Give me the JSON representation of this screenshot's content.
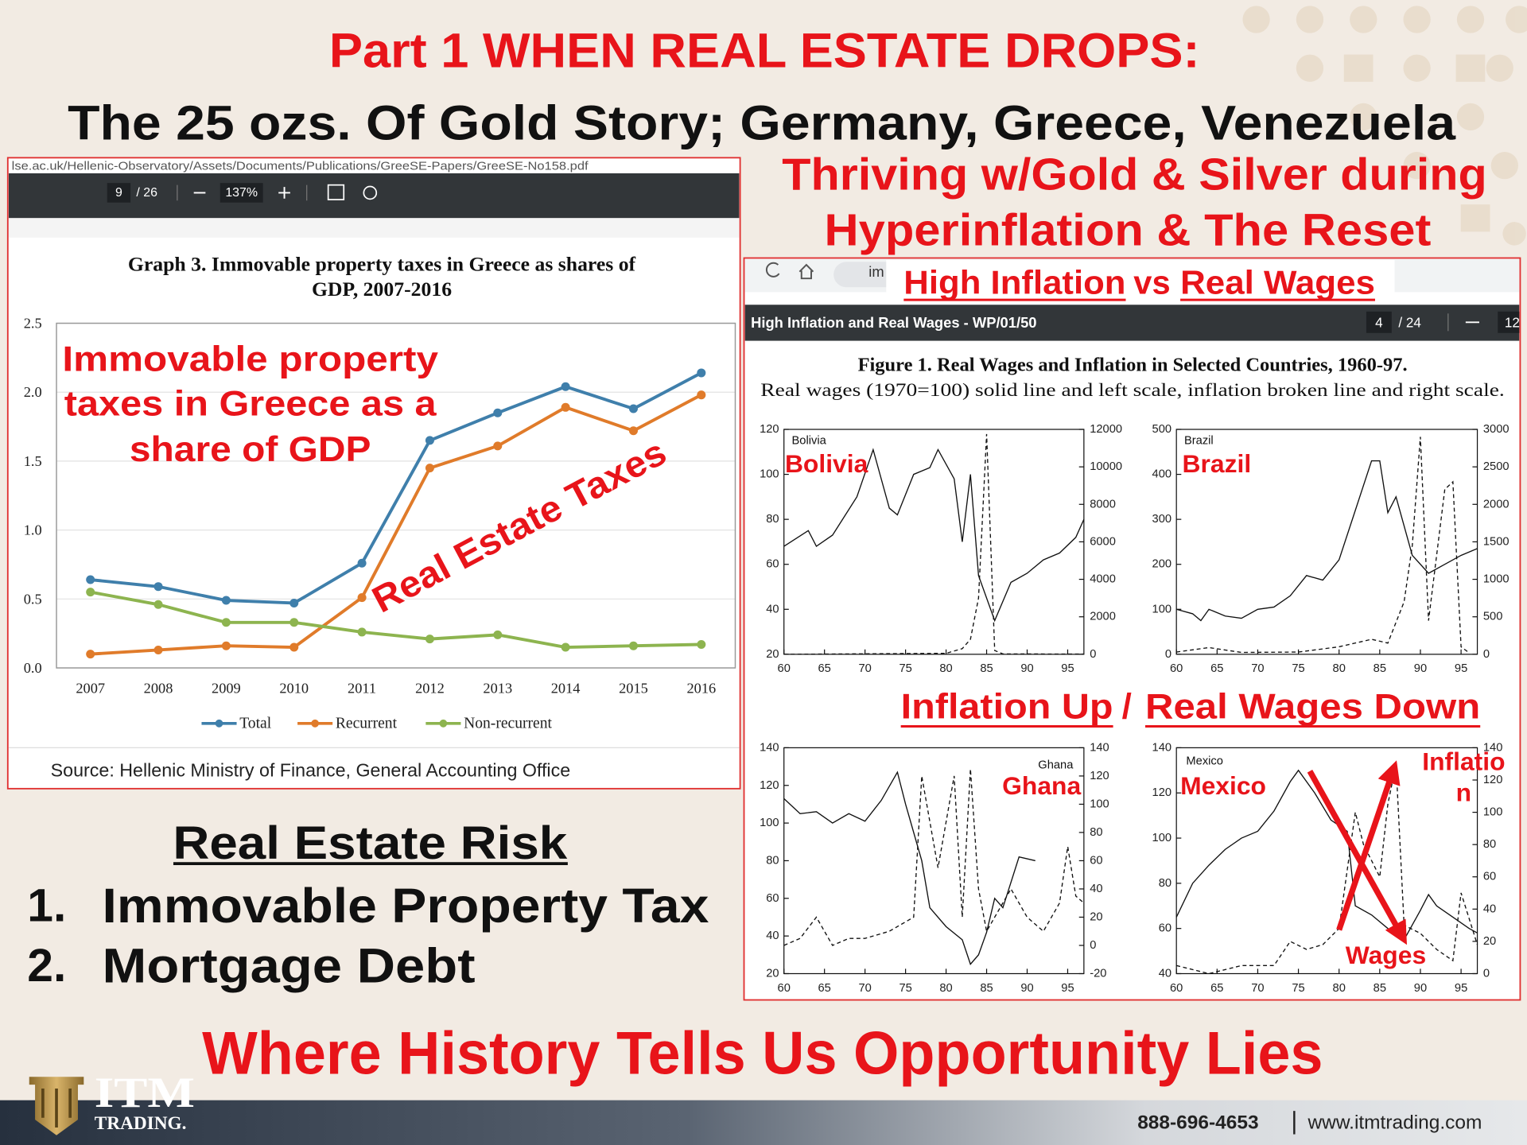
{
  "header": {
    "title": "Part 1 WHEN REAL ESTATE DROPS:",
    "subtitle": "The 25 ozs. Of Gold Story; Germany, Greece, Venezuela",
    "tagline": [
      "Thriving w/Gold & Silver during",
      "Hyperinflation & The Reset"
    ]
  },
  "left_viewer": {
    "url": "lse.ac.uk/Hellenic-Observatory/Assets/Documents/Publications/GreeSE-Papers/GreeSE-No158.pdf",
    "page": "9",
    "pages": "/ 26",
    "zoom": "137%",
    "source": "Source: Hellenic Ministry of Finance, General Accounting Office"
  },
  "right_viewer": {
    "address": "im",
    "headline": [
      "High Inflation",
      "vs",
      "Real Wages"
    ],
    "doc_title": "High Inflation and Real Wages - WP/01/50",
    "page": "4",
    "pages": "/ 24",
    "zoom": "12",
    "figure_title": "Figure 1. Real Wages and Inflation in Selected Countries, 1960-97.",
    "figure_subtitle": "Real wages (1970=100) solid line and left scale, inflation broken line and right scale.",
    "banner": [
      "Inflation Up",
      "/",
      "Real Wages Down"
    ]
  },
  "risk": {
    "title": "Real Estate Risk",
    "items": [
      {
        "number": "1.",
        "text": "Immovable Property Tax"
      },
      {
        "number": "2.",
        "text": "Mortgage Debt"
      }
    ]
  },
  "closing": "Where History Tells Us Opportunity Lies",
  "footer": {
    "logo": [
      "ITM",
      "TRADING."
    ],
    "phone": "888-696-4653",
    "website": "www.itmtrading.com"
  },
  "chart_data": [
    {
      "type": "line",
      "title": [
        "Graph 3. Immovable property taxes in Greece  as shares of",
        "GDP, 2007-2016"
      ],
      "categories": [
        "2007",
        "2008",
        "2009",
        "2010",
        "2011",
        "2012",
        "2013",
        "2014",
        "2015",
        "2016"
      ],
      "series": [
        {
          "name": "Total",
          "color": "#3f7fab",
          "values": [
            0.64,
            0.59,
            0.49,
            0.47,
            0.76,
            1.65,
            1.85,
            2.04,
            1.88,
            2.14
          ]
        },
        {
          "name": "Recurrent",
          "color": "#e07b2a",
          "values": [
            0.1,
            0.13,
            0.16,
            0.15,
            0.51,
            1.45,
            1.61,
            1.89,
            1.72,
            1.98
          ]
        },
        {
          "name": "Non-recurrent",
          "color": "#8db44f",
          "values": [
            0.55,
            0.46,
            0.33,
            0.33,
            0.26,
            0.21,
            0.24,
            0.15,
            0.16,
            0.17
          ]
        }
      ],
      "ylim": [
        0,
        2.5
      ],
      "yticks": [
        {
          "value": 0,
          "label": "0.0"
        },
        0.5,
        {
          "value": 1,
          "label": "1.0"
        },
        1.5,
        {
          "value": 2,
          "label": "2.0"
        },
        2.5
      ],
      "grid": true,
      "markers": true,
      "legend": "bottom",
      "annotations": [
        "Immovable property",
        "taxes in Greece as a",
        "share of GDP",
        "Real Estate Taxes"
      ]
    },
    {
      "type": "line",
      "label": "Bolivia",
      "callout": "Bolivia",
      "xlim": [
        60,
        97
      ],
      "xticks": [
        60,
        65,
        70,
        75,
        80,
        85,
        90,
        95
      ],
      "ylim": [
        20,
        120
      ],
      "yticks": [
        20,
        40,
        60,
        80,
        100,
        120
      ],
      "y2lim": [
        0,
        12000
      ],
      "y2ticks": [
        0,
        2000,
        4000,
        6000,
        8000,
        10000,
        12000
      ],
      "series": [
        {
          "color": "#111111",
          "style": "solid",
          "x": [
            60,
            63,
            64,
            66,
            69,
            71,
            73,
            74,
            76,
            78,
            79,
            81,
            82,
            83,
            84,
            86,
            88,
            90,
            92,
            94,
            96,
            97
          ],
          "values": [
            68,
            75,
            68,
            73,
            90,
            111,
            85,
            82,
            100,
            103,
            111,
            98,
            70,
            100,
            55,
            35,
            52,
            56,
            62,
            65,
            72,
            80
          ]
        },
        {
          "color": "#111111",
          "style": "dashed",
          "axis": "y2",
          "x": [
            60,
            80,
            82,
            83,
            84,
            85,
            86,
            87,
            97
          ],
          "values": [
            0,
            50,
            300,
            800,
            3000,
            11750,
            200,
            20,
            10
          ]
        }
      ]
    },
    {
      "type": "line",
      "label": "Brazil",
      "callout": "Brazil",
      "xlim": [
        60,
        97
      ],
      "xticks": [
        60,
        65,
        70,
        75,
        80,
        85,
        90,
        95
      ],
      "ylim": [
        0,
        500
      ],
      "yticks": [
        0,
        100,
        200,
        300,
        400,
        500
      ],
      "y2lim": [
        0,
        3000
      ],
      "y2ticks": [
        0,
        500,
        1000,
        1500,
        2000,
        2500,
        3000
      ],
      "series": [
        {
          "color": "#111111",
          "style": "solid",
          "x": [
            60,
            62,
            63,
            64,
            66,
            68,
            70,
            72,
            74,
            76,
            78,
            80,
            82,
            84,
            85,
            86,
            87,
            89,
            91,
            93,
            95,
            97
          ],
          "values": [
            100,
            90,
            75,
            100,
            85,
            80,
            100,
            105,
            130,
            175,
            165,
            210,
            320,
            430,
            430,
            315,
            350,
            220,
            180,
            200,
            220,
            235
          ]
        },
        {
          "color": "#111111",
          "style": "dashed",
          "axis": "y2",
          "x": [
            60,
            64,
            68,
            75,
            80,
            84,
            86,
            88,
            89,
            90,
            91,
            93,
            94,
            95,
            96
          ],
          "values": [
            30,
            90,
            25,
            30,
            100,
            200,
            150,
            700,
            1450,
            2900,
            450,
            2200,
            2300,
            100,
            20
          ]
        }
      ]
    },
    {
      "type": "line",
      "label": "Ghana",
      "callout": "Ghana",
      "xlim": [
        60,
        97
      ],
      "xticks": [
        60,
        65,
        70,
        75,
        80,
        85,
        90,
        95
      ],
      "ylim": [
        20,
        140
      ],
      "yticks": [
        20,
        40,
        60,
        80,
        100,
        120,
        140
      ],
      "y2lim": [
        -20,
        140
      ],
      "y2ticks": [
        -20,
        0,
        20,
        40,
        60,
        80,
        100,
        120,
        140
      ],
      "series": [
        {
          "color": "#111111",
          "style": "solid",
          "x": [
            60,
            62,
            64,
            66,
            68,
            70,
            72,
            74,
            75,
            77,
            78,
            80,
            82,
            83,
            84,
            85,
            86,
            87,
            89,
            91
          ],
          "values": [
            113,
            105,
            106,
            100,
            105,
            101,
            112,
            127,
            110,
            80,
            55,
            45,
            38,
            25,
            30,
            42,
            60,
            55,
            82,
            80
          ]
        },
        {
          "color": "#111111",
          "style": "dashed",
          "axis": "y2",
          "x": [
            60,
            62,
            64,
            66,
            68,
            70,
            73,
            76,
            77,
            79,
            81,
            82,
            83,
            84,
            85,
            86,
            88,
            90,
            92,
            94,
            95,
            96,
            97
          ],
          "values": [
            0,
            5,
            20,
            0,
            5,
            5,
            10,
            20,
            120,
            55,
            120,
            20,
            125,
            40,
            10,
            20,
            40,
            20,
            10,
            30,
            70,
            35,
            30
          ]
        }
      ]
    },
    {
      "type": "line",
      "label": "Mexico",
      "callout": "Mexico",
      "xlim": [
        60,
        97
      ],
      "xticks": [
        60,
        65,
        70,
        75,
        80,
        85,
        90,
        95
      ],
      "ylim": [
        40,
        140
      ],
      "yticks": [
        40,
        60,
        80,
        100,
        120,
        140
      ],
      "y2lim": [
        0,
        140
      ],
      "y2ticks": [
        0,
        20,
        40,
        60,
        80,
        100,
        120,
        140
      ],
      "annotations": [
        "Inflatio",
        "n",
        "Wages"
      ],
      "series": [
        {
          "color": "#111111",
          "style": "solid",
          "x": [
            60,
            62,
            64,
            66,
            68,
            70,
            72,
            74,
            75,
            77,
            79,
            81,
            82,
            84,
            86,
            88,
            90,
            91,
            92,
            94,
            96,
            97
          ],
          "values": [
            65,
            80,
            88,
            95,
            100,
            103,
            112,
            125,
            130,
            120,
            108,
            103,
            70,
            66,
            60,
            55,
            68,
            75,
            70,
            65,
            60,
            58
          ]
        },
        {
          "color": "#111111",
          "style": "dashed",
          "axis": "y2",
          "x": [
            60,
            64,
            68,
            72,
            74,
            76,
            78,
            80,
            82,
            83,
            85,
            86,
            87,
            88,
            90,
            92,
            94,
            95,
            97
          ],
          "values": [
            5,
            0,
            5,
            5,
            20,
            15,
            18,
            28,
            100,
            80,
            60,
            105,
            130,
            30,
            25,
            15,
            8,
            50,
            18
          ]
        }
      ]
    }
  ]
}
